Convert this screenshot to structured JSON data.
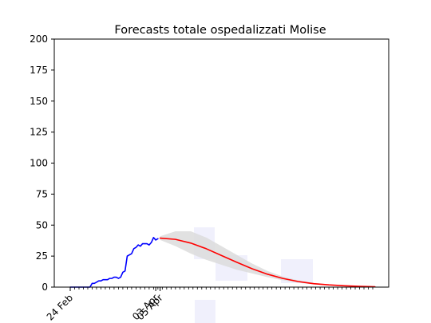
{
  "chart_data": {
    "type": "line",
    "title": "Forecasts totale ospedalizzati Molise",
    "xlabel": "",
    "ylabel": "",
    "ylim": [
      0,
      200
    ],
    "yticks": [
      0,
      25,
      50,
      75,
      100,
      125,
      150,
      175,
      200
    ],
    "x_range_days": [
      0,
      138
    ],
    "x_tick_labels": [
      {
        "label": "24 Feb",
        "day": 0
      },
      {
        "label": "03 Apr",
        "day": 39
      },
      {
        "label": "05 Apr",
        "day": 41
      }
    ],
    "grid": false,
    "series": [
      {
        "color": "#0000ff",
        "x_start_date": "24 Feb",
        "values": [
          0,
          0,
          0,
          0,
          0,
          0,
          0,
          0,
          0,
          0,
          3,
          3,
          4,
          5,
          5,
          6,
          6,
          6,
          7,
          7,
          8,
          8,
          7,
          8,
          12,
          13,
          25,
          26,
          27,
          31,
          32,
          34,
          33,
          35,
          35,
          35,
          34,
          36,
          40,
          38,
          39
        ]
      },
      {
        "color": "#ff0000",
        "x_start_date": "05 Apr",
        "days": [
          41,
          48,
          55,
          62,
          69,
          76,
          83,
          90,
          97,
          104,
          111,
          118,
          125,
          132,
          139
        ],
        "values": [
          39.5,
          38.5,
          35.5,
          31,
          25.5,
          20,
          14.8,
          10.4,
          7,
          4.5,
          2.8,
          1.8,
          1.1,
          0.6,
          0.3
        ]
      }
    ],
    "band": {
      "color": "#dcdcdc",
      "days": [
        41,
        48,
        55,
        62,
        69,
        76,
        83,
        90,
        97,
        104,
        111,
        118,
        125,
        132,
        139
      ],
      "upper": [
        41,
        45,
        45,
        40,
        33,
        26,
        19,
        13,
        8.5,
        5.5,
        3.5,
        2.2,
        1.3,
        0.7,
        0.4
      ],
      "lower": [
        38,
        33,
        27,
        22,
        18,
        14,
        11,
        8,
        5.5,
        3.5,
        2.2,
        1.4,
        0.9,
        0.5,
        0.2
      ]
    }
  }
}
